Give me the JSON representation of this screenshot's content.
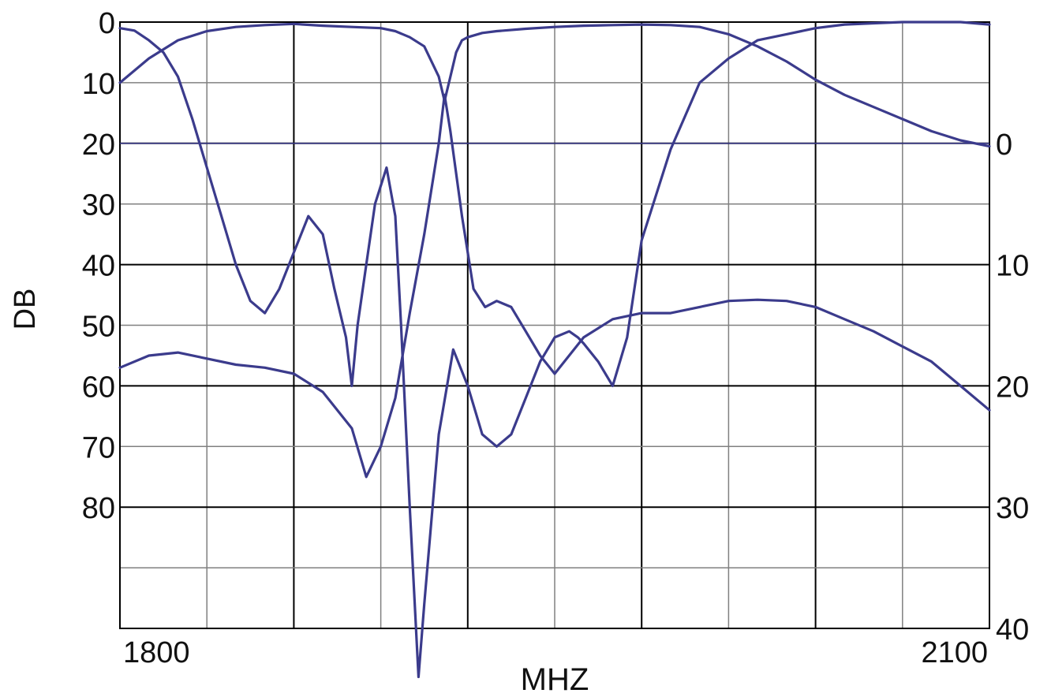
{
  "chart_data": {
    "type": "line",
    "title": "",
    "xlabel": "MHZ",
    "ylabel": "DB",
    "xlim": [
      1800,
      2100
    ],
    "ylim_left": [
      0,
      100
    ],
    "ylim_right": [
      -10,
      40
    ],
    "x_tick_labels": [
      {
        "value": 1800,
        "label": "1800"
      },
      {
        "value": 2100,
        "label": "2100"
      }
    ],
    "y_tick_labels_left": [
      {
        "value": 0,
        "label": "0"
      },
      {
        "value": 10,
        "label": "10"
      },
      {
        "value": 20,
        "label": "20"
      },
      {
        "value": 30,
        "label": "30"
      },
      {
        "value": 40,
        "label": "40"
      },
      {
        "value": 50,
        "label": "50"
      },
      {
        "value": 60,
        "label": "60"
      },
      {
        "value": 70,
        "label": "70"
      },
      {
        "value": 80,
        "label": "80"
      }
    ],
    "y_tick_labels_right": [
      {
        "value": 0,
        "label": "0"
      },
      {
        "value": 10,
        "label": "10"
      },
      {
        "value": 20,
        "label": "20"
      },
      {
        "value": 30,
        "label": "30"
      },
      {
        "value": 40,
        "label": "40"
      }
    ],
    "grid": true,
    "legend": "none",
    "colors": {
      "line": "#3b3b8c",
      "grid_minor": "#808080",
      "grid_major": "#000000",
      "text": "#111111",
      "background": "#ffffff"
    },
    "series": [
      {
        "axis": "left",
        "x": [
          1800,
          1810,
          1820,
          1830,
          1840,
          1850,
          1860,
          1870,
          1880,
          1890,
          1895,
          1900,
          1905,
          1910,
          1912,
          1914,
          1916,
          1918,
          1920,
          1925,
          1930,
          1940,
          1950,
          1960,
          1970,
          1980,
          1990,
          2000,
          2010,
          2020,
          2030,
          2040,
          2050,
          2060,
          2070,
          2080,
          2090,
          2100
        ],
        "y": [
          10,
          6,
          3,
          1.5,
          0.8,
          0.5,
          0.3,
          0.6,
          0.8,
          1,
          1.5,
          2.5,
          4,
          9,
          13,
          9,
          5,
          3,
          2.5,
          1.8,
          1.5,
          1.1,
          0.8,
          0.6,
          0.5,
          0.4,
          0.5,
          0.8,
          2,
          4,
          6.5,
          9.5,
          12,
          14,
          16,
          18,
          19.5,
          20.5
        ]
      },
      {
        "axis": "left",
        "x": [
          1800,
          1810,
          1820,
          1830,
          1840,
          1850,
          1860,
          1870,
          1880,
          1885,
          1890,
          1895,
          1900,
          1905,
          1910,
          1912,
          1914,
          1918,
          1922,
          1926,
          1930,
          1935,
          1940,
          1945,
          1950,
          1960,
          1970,
          1980,
          1990,
          2000,
          2010,
          2020,
          2030,
          2040,
          2050,
          2060,
          2070,
          2080,
          2090,
          2100
        ],
        "y": [
          57,
          55,
          54.5,
          55.5,
          56.5,
          57,
          58,
          61,
          67,
          75,
          70,
          62,
          48,
          35,
          20,
          12,
          18,
          32,
          44,
          47,
          46,
          47,
          51,
          55,
          58,
          52,
          49,
          48,
          48,
          47,
          46,
          45.8,
          46,
          47,
          49,
          51,
          53.5,
          56,
          60,
          64
        ]
      },
      {
        "axis": "right",
        "x": [
          1800,
          1805,
          1810,
          1815,
          1820,
          1825,
          1830,
          1835,
          1840,
          1845,
          1850,
          1855,
          1860,
          1865,
          1870,
          1874,
          1878,
          1880,
          1882,
          1885,
          1888,
          1892,
          1895,
          1897,
          1900,
          1903,
          1905,
          1910,
          1915,
          1920,
          1925,
          1930,
          1935,
          1940,
          1945,
          1950,
          1955,
          1958,
          1960,
          1965,
          1970,
          1975,
          1980,
          1990,
          2000,
          2010,
          2020,
          2030,
          2040,
          2050,
          2060,
          2070,
          2080,
          2090,
          2100
        ],
        "y": [
          -9.5,
          -9.3,
          -8.5,
          -7.5,
          -5.5,
          -2,
          2,
          6,
          10,
          13,
          14,
          12,
          9,
          6,
          7.5,
          12,
          16,
          20,
          15,
          10,
          5,
          2,
          6,
          15,
          30,
          44,
          38,
          24,
          17,
          20,
          24,
          25,
          24,
          21,
          18,
          16,
          15.5,
          16,
          16.5,
          18,
          20,
          16,
          8,
          0.5,
          -5,
          -7,
          -8.5,
          -9,
          -9.5,
          -9.8,
          -9.9,
          -10,
          -10,
          -10,
          -9.8
        ]
      }
    ]
  }
}
